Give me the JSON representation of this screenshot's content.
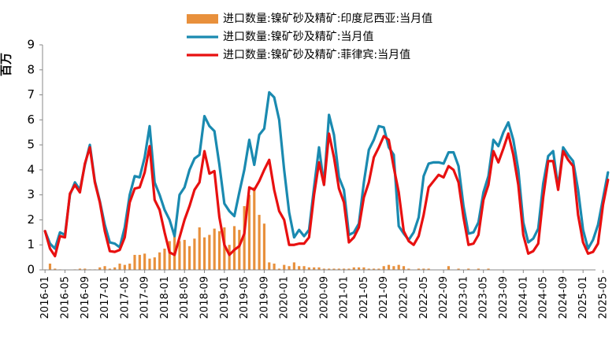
{
  "chart_data": {
    "type": "bar+line",
    "title": "",
    "ylabel": "百万",
    "xlabel": "",
    "ylim": [
      0,
      9
    ],
    "yticks": [
      0,
      1,
      2,
      3,
      4,
      5,
      6,
      7,
      8,
      9
    ],
    "start_month": "2016-01",
    "x_tick_labels": [
      "2016-01",
      "2016-05",
      "2016-09",
      "2017-01",
      "2017-05",
      "2017-09",
      "2018-01",
      "2018-05",
      "2018-09",
      "2019-01",
      "2019-05",
      "2019-09",
      "2020-01",
      "2020-05",
      "2020-09",
      "2021-01",
      "2021-05",
      "2021-09",
      "2022-01",
      "2022-05",
      "2022-09",
      "2023-01",
      "2023-05",
      "2023-09",
      "2024-01",
      "2024-05",
      "2024-09",
      "2025-01",
      "2025-05"
    ],
    "legend": [
      {
        "name": "进口数量:镍矿砂及精矿:印度尼西亚:当月值",
        "type": "bar",
        "color": "#E8903C"
      },
      {
        "name": "进口数量:镍矿砂及精矿:当月值",
        "type": "line",
        "color": "#1A8AB0"
      },
      {
        "name": "进口数量:镍矿砂及精矿:菲律宾:当月值",
        "type": "line",
        "color": "#E81010"
      }
    ],
    "series": [
      {
        "name": "进口数量:镍矿砂及精矿:印度尼西亚:当月值",
        "type": "bar",
        "values": [
          0.02,
          0.25,
          0.05,
          0.02,
          0.0,
          0.0,
          0.02,
          0.05,
          0.05,
          0.02,
          0.02,
          0.1,
          0.15,
          0.05,
          0.1,
          0.25,
          0.2,
          0.25,
          0.6,
          0.6,
          0.65,
          0.45,
          0.5,
          0.7,
          0.85,
          1.15,
          1.35,
          1.15,
          1.2,
          0.95,
          1.25,
          1.7,
          1.3,
          1.4,
          1.65,
          1.55,
          1.7,
          1.0,
          1.75,
          1.6,
          2.55,
          3.0,
          3.3,
          2.2,
          1.85,
          0.3,
          0.25,
          0.05,
          0.2,
          0.15,
          0.3,
          0.15,
          0.15,
          0.1,
          0.1,
          0.1,
          0.05,
          0.05,
          0.05,
          0.05,
          0.05,
          0.05,
          0.1,
          0.1,
          0.1,
          0.05,
          0.05,
          0.05,
          0.15,
          0.2,
          0.15,
          0.2,
          0.15,
          0.05,
          0.0,
          0.05,
          0.05,
          0.05,
          0.0,
          0.0,
          0.0,
          0.15,
          0.0,
          0.05,
          0.0,
          0.05,
          0.0,
          0.05,
          0.0,
          0.05,
          0.0,
          0.0,
          0.0,
          0.0,
          0.0,
          0.0,
          0.0,
          0.0,
          0.0,
          0.0,
          0.0,
          0.0,
          0.0,
          0.0,
          0.0,
          0.0,
          0.0,
          0.0,
          0.0,
          0.0,
          0.0
        ]
      },
      {
        "name": "进口数量:镍矿砂及精矿:当月值",
        "type": "line",
        "values": [
          1.55,
          1.05,
          0.85,
          1.5,
          1.4,
          3.0,
          3.5,
          3.2,
          4.2,
          5.0,
          3.55,
          2.75,
          1.8,
          1.1,
          1.05,
          0.9,
          1.7,
          3.0,
          3.75,
          3.7,
          4.5,
          5.75,
          3.5,
          3.0,
          2.4,
          2.0,
          1.35,
          3.0,
          3.3,
          4.0,
          4.45,
          4.6,
          6.15,
          5.75,
          5.55,
          4.2,
          2.65,
          2.35,
          2.15,
          3.1,
          4.0,
          5.2,
          4.2,
          5.4,
          5.65,
          7.1,
          6.9,
          6.0,
          4.0,
          2.3,
          1.3,
          1.6,
          1.35,
          1.6,
          3.3,
          4.9,
          3.4,
          6.2,
          5.4,
          3.7,
          3.2,
          1.4,
          1.5,
          1.85,
          3.5,
          4.8,
          5.2,
          5.75,
          5.7,
          4.9,
          4.6,
          1.75,
          1.45,
          1.2,
          1.5,
          2.1,
          3.75,
          4.25,
          4.3,
          4.3,
          4.25,
          4.7,
          4.7,
          4.15,
          2.55,
          1.45,
          1.5,
          1.9,
          3.1,
          3.75,
          5.2,
          4.95,
          5.5,
          5.9,
          5.2,
          4.0,
          1.9,
          1.1,
          1.25,
          1.65,
          3.45,
          4.55,
          4.75,
          3.3,
          4.9,
          4.6,
          4.35,
          3.2,
          1.6,
          0.85,
          1.2,
          1.8,
          2.85,
          3.9
        ]
      },
      {
        "name": "进口数量:镍矿砂及精矿:菲律宾:当月值",
        "type": "line",
        "values": [
          1.55,
          0.85,
          0.55,
          1.35,
          1.3,
          3.05,
          3.4,
          3.1,
          4.25,
          4.9,
          3.5,
          2.7,
          1.55,
          0.75,
          0.72,
          0.8,
          1.3,
          2.7,
          3.25,
          3.3,
          3.9,
          4.95,
          2.8,
          2.4,
          1.5,
          0.7,
          0.6,
          1.3,
          2.0,
          2.55,
          3.2,
          3.5,
          4.75,
          3.85,
          3.95,
          2.1,
          1.0,
          0.6,
          0.8,
          0.95,
          1.45,
          3.3,
          3.2,
          3.55,
          4.0,
          4.4,
          3.2,
          2.35,
          2.0,
          1.0,
          1.0,
          1.05,
          1.05,
          1.3,
          3.0,
          4.3,
          3.4,
          5.45,
          4.5,
          3.25,
          2.7,
          1.1,
          1.3,
          1.7,
          2.9,
          3.5,
          4.5,
          4.9,
          5.35,
          5.2,
          4.1,
          3.1,
          1.55,
          1.15,
          1.0,
          1.35,
          2.2,
          3.3,
          3.55,
          3.8,
          3.7,
          4.15,
          4.0,
          3.5,
          2.1,
          1.0,
          1.05,
          1.4,
          2.8,
          3.4,
          4.75,
          4.3,
          4.85,
          5.45,
          4.6,
          3.4,
          1.4,
          0.65,
          0.75,
          1.05,
          2.9,
          4.35,
          4.35,
          3.2,
          4.75,
          4.4,
          4.15,
          2.2,
          1.1,
          0.65,
          0.72,
          1.05,
          2.6,
          3.6
        ]
      }
    ]
  }
}
